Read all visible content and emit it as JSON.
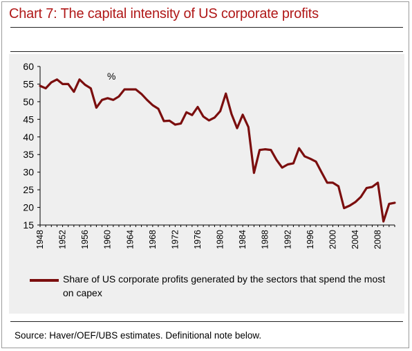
{
  "title": "Chart 7: The capital intensity of US corporate profits",
  "source": "Source: Haver/OEF/UBS estimates. Definitional note below.",
  "chart_data": {
    "type": "line",
    "title": "Chart 7: The capital intensity of US corporate profits",
    "unit_label": "%",
    "xlabel": "",
    "ylabel": "",
    "xlim": [
      1948,
      2011
    ],
    "ylim": [
      15,
      60
    ],
    "y_ticks": [
      15,
      20,
      25,
      30,
      35,
      40,
      45,
      50,
      55,
      60
    ],
    "x_tick_labels": [
      "1948",
      "1952",
      "1956",
      "1960",
      "1964",
      "1968",
      "1972",
      "1976",
      "1980",
      "1984",
      "1988",
      "1992",
      "1996",
      "2000",
      "2004",
      "2008"
    ],
    "grid": false,
    "legend_position": "bottom",
    "series": [
      {
        "name": "Share of US corporate profits generated by the sectors that spend the most on capex",
        "color": "#7b0e0e",
        "x": [
          1948,
          1949,
          1950,
          1951,
          1952,
          1953,
          1954,
          1955,
          1956,
          1957,
          1958,
          1959,
          1960,
          1961,
          1962,
          1963,
          1964,
          1965,
          1966,
          1967,
          1968,
          1969,
          1970,
          1971,
          1972,
          1973,
          1974,
          1975,
          1976,
          1977,
          1978,
          1979,
          1980,
          1981,
          1982,
          1983,
          1984,
          1985,
          1986,
          1987,
          1988,
          1989,
          1990,
          1991,
          1992,
          1993,
          1994,
          1995,
          1996,
          1997,
          1998,
          1999,
          2000,
          2001,
          2002,
          2003,
          2004,
          2005,
          2006,
          2007,
          2008,
          2009,
          2010,
          2011
        ],
        "values": [
          54.5,
          53.8,
          55.5,
          56.3,
          55,
          55,
          52.8,
          56.3,
          54.8,
          53.8,
          48.3,
          50.5,
          51,
          50.5,
          51.5,
          53.5,
          53.5,
          53.5,
          52.2,
          50.5,
          49,
          48,
          44.5,
          44.6,
          43.5,
          43.8,
          47,
          46.2,
          48.5,
          45.8,
          44.7,
          45.5,
          47.3,
          52.3,
          46.5,
          42.5,
          46.3,
          42.8,
          29.8,
          36.3,
          36.5,
          36.3,
          33.5,
          31.3,
          32.2,
          32.5,
          36.8,
          34.5,
          33.8,
          33,
          30,
          27,
          27,
          26,
          19.8,
          20.5,
          21.5,
          23,
          25.5,
          25.8,
          27,
          16,
          21,
          21.3
        ]
      }
    ]
  }
}
